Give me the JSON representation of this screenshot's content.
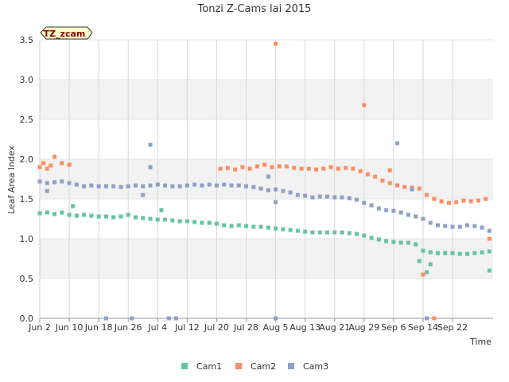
{
  "chart_data": {
    "type": "scatter",
    "title": "Tonzi Z-Cams lai 2015",
    "xlabel": "Time",
    "ylabel": "Leaf Area Index",
    "ylim": [
      0,
      3.5
    ],
    "yticks": [
      "0.0",
      "0.5",
      "1.0",
      "1.5",
      "2.0",
      "2.5",
      "3.0",
      "3.5"
    ],
    "xlim": [
      0,
      123
    ],
    "xticks": [
      {
        "day": 0,
        "label": "Jun 2"
      },
      {
        "day": 8,
        "label": "Jun 10"
      },
      {
        "day": 16,
        "label": "Jun 18"
      },
      {
        "day": 24,
        "label": "Jun 26"
      },
      {
        "day": 32,
        "label": "Jul 4"
      },
      {
        "day": 40,
        "label": "Jul 12"
      },
      {
        "day": 48,
        "label": "Jul 20"
      },
      {
        "day": 56,
        "label": "Jul 28"
      },
      {
        "day": 64,
        "label": "Aug 5"
      },
      {
        "day": 72,
        "label": "Aug 13"
      },
      {
        "day": 80,
        "label": "Aug 21"
      },
      {
        "day": 88,
        "label": "Aug 29"
      },
      {
        "day": 96,
        "label": "Sep 6"
      },
      {
        "day": 104,
        "label": "Sep 14"
      },
      {
        "day": 112,
        "label": "Sep 22"
      }
    ],
    "grid": true,
    "legend_position": "bottom",
    "badge": "TZ_zcam",
    "colors": {
      "Cam1": "#66c2a5",
      "Cam2": "#fc8d62",
      "Cam3": "#8da0cb"
    },
    "series": [
      {
        "name": "Cam1",
        "points": [
          [
            0,
            1.32
          ],
          [
            2,
            1.33
          ],
          [
            4,
            1.31
          ],
          [
            6,
            1.33
          ],
          [
            8,
            1.3
          ],
          [
            10,
            1.29
          ],
          [
            12,
            1.3
          ],
          [
            14,
            1.29
          ],
          [
            16,
            1.28
          ],
          [
            18,
            1.28
          ],
          [
            20,
            1.27
          ],
          [
            22,
            1.28
          ],
          [
            24,
            1.3
          ],
          [
            26,
            1.27
          ],
          [
            28,
            1.26
          ],
          [
            30,
            1.25
          ],
          [
            32,
            1.24
          ],
          [
            34,
            1.24
          ],
          [
            36,
            1.23
          ],
          [
            38,
            1.22
          ],
          [
            40,
            1.22
          ],
          [
            42,
            1.21
          ],
          [
            44,
            1.2
          ],
          [
            46,
            1.2
          ],
          [
            48,
            1.19
          ],
          [
            50,
            1.17
          ],
          [
            52,
            1.16
          ],
          [
            54,
            1.17
          ],
          [
            56,
            1.16
          ],
          [
            58,
            1.15
          ],
          [
            60,
            1.15
          ],
          [
            62,
            1.14
          ],
          [
            64,
            1.13
          ],
          [
            66,
            1.12
          ],
          [
            68,
            1.11
          ],
          [
            70,
            1.1
          ],
          [
            72,
            1.09
          ],
          [
            74,
            1.08
          ],
          [
            76,
            1.08
          ],
          [
            78,
            1.08
          ],
          [
            80,
            1.08
          ],
          [
            82,
            1.08
          ],
          [
            84,
            1.07
          ],
          [
            86,
            1.06
          ],
          [
            88,
            1.04
          ],
          [
            90,
            1.01
          ],
          [
            92,
            0.99
          ],
          [
            94,
            0.97
          ],
          [
            96,
            0.96
          ],
          [
            98,
            0.95
          ],
          [
            100,
            0.95
          ],
          [
            102,
            0.93
          ],
          [
            104,
            0.85
          ],
          [
            106,
            0.83
          ],
          [
            108,
            0.82
          ],
          [
            110,
            0.82
          ],
          [
            112,
            0.82
          ],
          [
            114,
            0.81
          ],
          [
            116,
            0.81
          ],
          [
            118,
            0.82
          ],
          [
            120,
            0.83
          ],
          [
            122,
            0.84
          ],
          [
            9,
            1.41
          ],
          [
            33,
            1.36
          ],
          [
            103,
            0.72
          ],
          [
            105,
            0.58
          ],
          [
            106,
            0.68
          ],
          [
            122,
            0.6
          ]
        ]
      },
      {
        "name": "Cam2",
        "points": [
          [
            0,
            1.9
          ],
          [
            1,
            1.95
          ],
          [
            2,
            1.88
          ],
          [
            3,
            1.92
          ],
          [
            4,
            2.03
          ],
          [
            6,
            1.95
          ],
          [
            8,
            1.93
          ],
          [
            49,
            1.88
          ],
          [
            51,
            1.89
          ],
          [
            53,
            1.87
          ],
          [
            55,
            1.9
          ],
          [
            57,
            1.88
          ],
          [
            59,
            1.91
          ],
          [
            61,
            1.93
          ],
          [
            63,
            1.9
          ],
          [
            65,
            1.91
          ],
          [
            67,
            1.91
          ],
          [
            69,
            1.89
          ],
          [
            71,
            1.88
          ],
          [
            73,
            1.88
          ],
          [
            75,
            1.87
          ],
          [
            77,
            1.88
          ],
          [
            79,
            1.9
          ],
          [
            81,
            1.88
          ],
          [
            83,
            1.89
          ],
          [
            85,
            1.88
          ],
          [
            87,
            1.85
          ],
          [
            89,
            1.81
          ],
          [
            91,
            1.78
          ],
          [
            93,
            1.73
          ],
          [
            95,
            1.7
          ],
          [
            97,
            1.67
          ],
          [
            99,
            1.65
          ],
          [
            101,
            1.64
          ],
          [
            103,
            1.63
          ],
          [
            105,
            1.55
          ],
          [
            107,
            1.5
          ],
          [
            109,
            1.47
          ],
          [
            111,
            1.45
          ],
          [
            113,
            1.46
          ],
          [
            115,
            1.48
          ],
          [
            117,
            1.47
          ],
          [
            119,
            1.48
          ],
          [
            121,
            1.5
          ],
          [
            64,
            3.45
          ],
          [
            88,
            2.68
          ],
          [
            95,
            1.86
          ],
          [
            104,
            0.55
          ],
          [
            107,
            0.0
          ],
          [
            122,
            1.0
          ]
        ]
      },
      {
        "name": "Cam3",
        "points": [
          [
            0,
            1.72
          ],
          [
            2,
            1.7
          ],
          [
            4,
            1.71
          ],
          [
            6,
            1.72
          ],
          [
            8,
            1.7
          ],
          [
            10,
            1.68
          ],
          [
            12,
            1.66
          ],
          [
            14,
            1.67
          ],
          [
            16,
            1.66
          ],
          [
            18,
            1.66
          ],
          [
            20,
            1.66
          ],
          [
            22,
            1.65
          ],
          [
            24,
            1.66
          ],
          [
            26,
            1.67
          ],
          [
            28,
            1.66
          ],
          [
            30,
            1.67
          ],
          [
            32,
            1.68
          ],
          [
            34,
            1.67
          ],
          [
            36,
            1.66
          ],
          [
            38,
            1.66
          ],
          [
            40,
            1.67
          ],
          [
            42,
            1.68
          ],
          [
            44,
            1.67
          ],
          [
            46,
            1.68
          ],
          [
            48,
            1.67
          ],
          [
            50,
            1.68
          ],
          [
            52,
            1.67
          ],
          [
            54,
            1.67
          ],
          [
            56,
            1.66
          ],
          [
            58,
            1.65
          ],
          [
            60,
            1.63
          ],
          [
            62,
            1.61
          ],
          [
            64,
            1.62
          ],
          [
            66,
            1.6
          ],
          [
            68,
            1.58
          ],
          [
            70,
            1.55
          ],
          [
            72,
            1.54
          ],
          [
            74,
            1.52
          ],
          [
            76,
            1.53
          ],
          [
            78,
            1.53
          ],
          [
            80,
            1.52
          ],
          [
            82,
            1.52
          ],
          [
            84,
            1.51
          ],
          [
            86,
            1.49
          ],
          [
            88,
            1.45
          ],
          [
            90,
            1.42
          ],
          [
            92,
            1.38
          ],
          [
            94,
            1.36
          ],
          [
            96,
            1.35
          ],
          [
            98,
            1.33
          ],
          [
            100,
            1.3
          ],
          [
            102,
            1.28
          ],
          [
            104,
            1.25
          ],
          [
            106,
            1.2
          ],
          [
            108,
            1.17
          ],
          [
            110,
            1.16
          ],
          [
            112,
            1.15
          ],
          [
            114,
            1.15
          ],
          [
            116,
            1.17
          ],
          [
            118,
            1.16
          ],
          [
            120,
            1.14
          ],
          [
            122,
            1.1
          ],
          [
            2,
            1.6
          ],
          [
            28,
            1.55
          ],
          [
            30,
            2.18
          ],
          [
            30,
            1.9
          ],
          [
            62,
            1.78
          ],
          [
            64,
            1.46
          ],
          [
            97,
            2.2
          ],
          [
            101,
            1.62
          ],
          [
            18,
            0.0
          ],
          [
            25,
            0.0
          ],
          [
            35,
            0.0
          ],
          [
            37,
            0.0
          ],
          [
            64,
            0.0
          ],
          [
            105,
            0.0
          ]
        ]
      }
    ]
  }
}
